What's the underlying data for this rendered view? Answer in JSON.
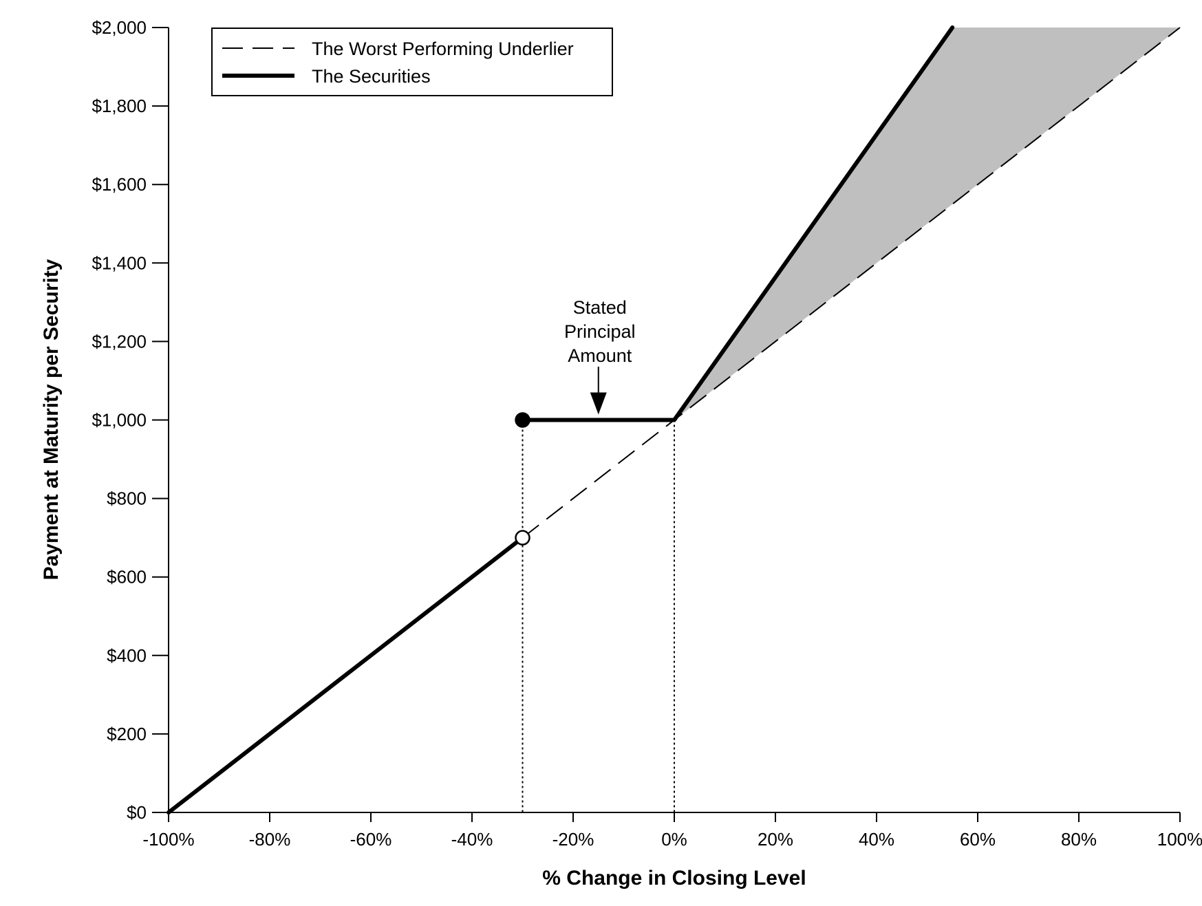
{
  "chart_data": {
    "type": "line",
    "title": "",
    "xlabel": "% Change in Closing Level",
    "ylabel": "Payment at Maturity per Security",
    "xlim": [
      -100,
      100
    ],
    "ylim": [
      0,
      2000
    ],
    "x_ticks": [
      -100,
      -80,
      -60,
      -40,
      -20,
      0,
      20,
      40,
      60,
      80,
      100
    ],
    "x_tick_labels": [
      "-100%",
      "-80%",
      "-60%",
      "-40%",
      "-20%",
      "0%",
      "20%",
      "40%",
      "60%",
      "80%",
      "100%"
    ],
    "y_ticks": [
      0,
      200,
      400,
      600,
      800,
      1000,
      1200,
      1400,
      1600,
      1800,
      2000
    ],
    "y_tick_labels": [
      "$0",
      "$200",
      "$400",
      "$600",
      "$800",
      "$1,000",
      "$1,200",
      "$1,400",
      "$1,600",
      "$1,800",
      "$2,000"
    ],
    "legend_position": "top-left",
    "grid": false,
    "series": [
      {
        "name": "The Worst Performing Underlier",
        "style": "dashed",
        "x": [
          -30,
          100
        ],
        "y": [
          700,
          2000
        ]
      },
      {
        "name": "The Securities",
        "style": "solid-bold",
        "segments": [
          {
            "x": [
              -100,
              -30
            ],
            "y": [
              0,
              700
            ]
          },
          {
            "x": [
              -30,
              0
            ],
            "y": [
              1000,
              1000
            ]
          },
          {
            "x": [
              0,
              55
            ],
            "y": [
              1000,
              2000
            ]
          }
        ]
      }
    ],
    "markers": [
      {
        "x": -30,
        "y": 1000,
        "fill": "filled"
      },
      {
        "x": -30,
        "y": 700,
        "fill": "open"
      }
    ],
    "reference_lines": [
      {
        "x": -30,
        "style": "dotted"
      },
      {
        "x": 0,
        "style": "dotted"
      }
    ],
    "shaded_region": {
      "x": [
        0,
        55,
        100
      ],
      "y": [
        1000,
        2000,
        2000
      ],
      "color": "#bfbfbf"
    },
    "annotation": {
      "lines": [
        "Stated",
        "Principal",
        "Amount"
      ],
      "arrow_to": {
        "x": -15,
        "y": 1000
      }
    }
  }
}
